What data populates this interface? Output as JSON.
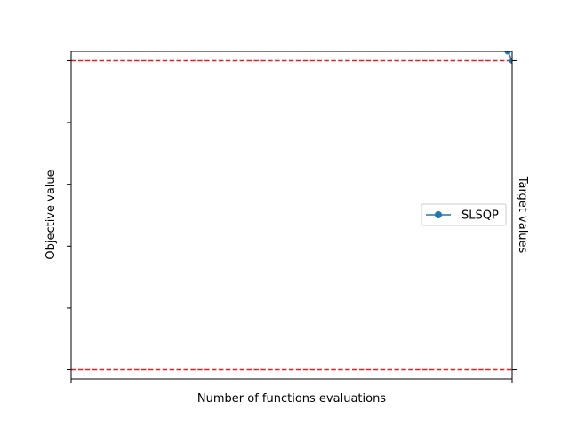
{
  "chart_data": {
    "type": "line",
    "xlabel": "Number of functions evaluations",
    "ylabel": "Objective value",
    "y2label": "Target values",
    "xlim": [
      0,
      1
    ],
    "ylim": [
      -0.03,
      1.03
    ],
    "x_ticks": [
      0,
      1
    ],
    "y_ticks": [
      0,
      0.2,
      0.4,
      0.6,
      0.8,
      1.0
    ],
    "right_y_ticks": [
      0,
      1
    ],
    "grid": false,
    "legend": {
      "placement": "center-right",
      "entries": [
        "SLSQP"
      ]
    },
    "series": [
      {
        "name": "SLSQP",
        "color": "#1f77b4",
        "marker": "circle",
        "x": [
          0.99,
          1.0
        ],
        "y": [
          1.03,
          1.0
        ]
      }
    ],
    "reference_lines": [
      {
        "axis": "y",
        "value": 1.0,
        "color": "#d62728",
        "style": "dashed"
      },
      {
        "axis": "y",
        "value": 0.0,
        "color": "#d62728",
        "style": "dashed"
      }
    ]
  }
}
